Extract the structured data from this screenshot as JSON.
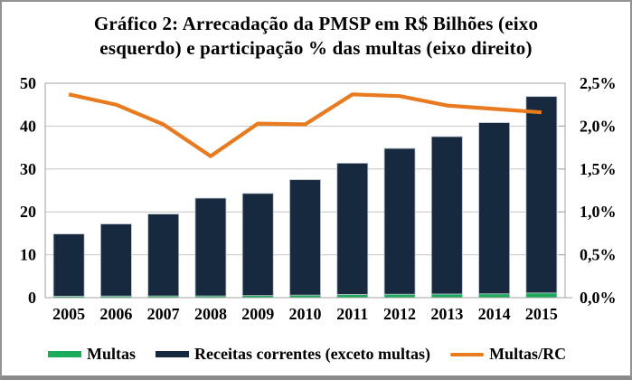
{
  "title": {
    "line1": "Gráfico 2: Arrecadação da PMSP em R$ Bilhões (eixo",
    "line2": "esquerdo) e participação % das multas (eixo direito)"
  },
  "chart_data": {
    "type": "bar",
    "subtype": "stacked bars (left axis) with line overlay (right axis), dual y-axes",
    "title": "Gráfico 2: Arrecadação da PMSP em R$ Bilhões (eixo esquerdo) e participação % das multas (eixo direito)",
    "categories": [
      "2005",
      "2006",
      "2007",
      "2008",
      "2009",
      "2010",
      "2011",
      "2012",
      "2013",
      "2014",
      "2015"
    ],
    "series": [
      {
        "name": "Multas",
        "type": "bar",
        "stacked": true,
        "axis": "left",
        "color": "#1cab5b",
        "values": [
          0.35,
          0.38,
          0.4,
          0.4,
          0.5,
          0.6,
          0.75,
          0.8,
          0.85,
          0.9,
          1.1
        ]
      },
      {
        "name": "Receitas correntes (exceto multas)",
        "type": "bar",
        "stacked": true,
        "axis": "left",
        "color": "#17293e",
        "values": [
          14.5,
          16.8,
          19.1,
          22.8,
          23.8,
          26.9,
          30.6,
          34.0,
          36.7,
          39.9,
          45.8
        ]
      },
      {
        "name": "Multas/RC",
        "type": "line",
        "axis": "right",
        "color": "#e87a1f",
        "values": [
          2.37,
          2.25,
          2.02,
          1.65,
          2.03,
          2.02,
          2.37,
          2.35,
          2.24,
          2.2,
          2.16
        ]
      }
    ],
    "left_axis": {
      "min": 0,
      "max": 50,
      "step": 10,
      "ticks": [
        "0",
        "10",
        "20",
        "30",
        "40",
        "50"
      ]
    },
    "right_axis": {
      "min": 0,
      "max": 2.5,
      "step": 0.5,
      "ticks": [
        "0,0%",
        "0,5%",
        "1,0%",
        "1,5%",
        "2,0%",
        "2,5%"
      ]
    },
    "grid": true,
    "legend_position": "bottom",
    "colors": {
      "grid": "#c6c6c6",
      "plot_border": "#a3a3a3",
      "bar_outline": "#b9c1cb",
      "text": "#000000",
      "frame_border": "#8f8f8f",
      "background": "#ffffff"
    }
  }
}
